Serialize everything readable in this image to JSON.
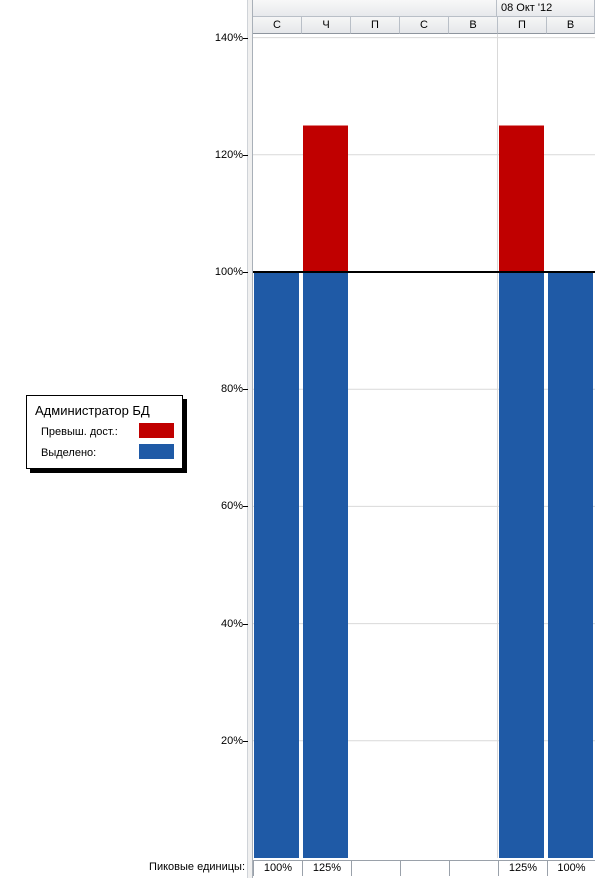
{
  "timescale": {
    "week_label": "08 Окт '12",
    "days": [
      "С",
      "Ч",
      "П",
      "С",
      "В",
      "П",
      "В"
    ]
  },
  "legend": {
    "title": "Администратор БД",
    "items": [
      {
        "label": "Превыш. дост.:",
        "color": "#c00000"
      },
      {
        "label": "Выделено:",
        "color": "#1f5aa6"
      }
    ]
  },
  "footer": {
    "label": "Пиковые единицы:",
    "values": [
      "100%",
      "125%",
      "",
      "",
      "",
      "125%",
      "100%"
    ]
  },
  "chart_data": {
    "type": "bar",
    "categories": [
      "С",
      "Ч",
      "П",
      "С",
      "В",
      "П",
      "В"
    ],
    "series": [
      {
        "name": "Выделено:",
        "color": "#1f5aa6",
        "values": [
          100,
          100,
          0,
          0,
          0,
          100,
          100
        ]
      },
      {
        "name": "Превыш. дост.:",
        "color": "#c00000",
        "values": [
          0,
          25,
          0,
          0,
          0,
          25,
          0
        ]
      }
    ],
    "stacked": true,
    "ylim": [
      0,
      140
    ],
    "yticks": [
      "20%",
      "40%",
      "60%",
      "80%",
      "100%",
      "120%",
      "140%"
    ],
    "ytick_values": [
      20,
      40,
      60,
      80,
      100,
      120,
      140
    ],
    "threshold": 100,
    "grid": true,
    "legend_position": "left"
  }
}
